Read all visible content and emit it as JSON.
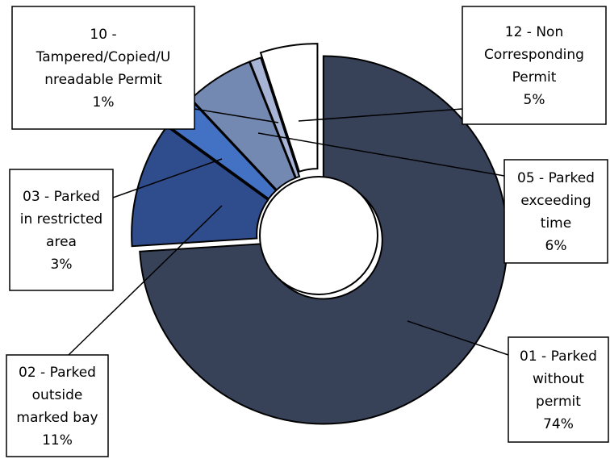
{
  "chart_data": {
    "type": "pie",
    "variant": "exploded donut",
    "categories": [
      "01 - Parked without permit",
      "02 - Parked outside marked bay",
      "03 - Parked in restricted area",
      "05 - Parked exceeding time",
      "10 - Tampered/Copied/Unreadable Permit",
      "12 - Non Corresponding Permit"
    ],
    "values": [
      74,
      11,
      3,
      6,
      1,
      5
    ],
    "colors": {
      "01": "#374259",
      "02": "#2F4D8C",
      "03": "#4371C4",
      "05": "#7389B2",
      "10": "#A8B4D6",
      "12": "#FFFFFF"
    },
    "legend": "none",
    "labels": [
      {
        "id": "01",
        "lines": [
          "01 - Parked",
          "without",
          "permit",
          "74%"
        ]
      },
      {
        "id": "02",
        "lines": [
          "02 - Parked",
          "outside",
          "marked bay",
          "11%"
        ]
      },
      {
        "id": "03",
        "lines": [
          "03 - Parked",
          "in restricted",
          "area",
          "3%"
        ]
      },
      {
        "id": "05",
        "lines": [
          "05 - Parked",
          "exceeding",
          "time",
          "6%"
        ]
      },
      {
        "id": "10",
        "lines": [
          "10 -",
          "Tampered/Copied/U",
          "nreadable Permit",
          "1%"
        ]
      },
      {
        "id": "12",
        "lines": [
          "12 - Non",
          "Corresponding",
          "Permit",
          "5%"
        ]
      }
    ]
  }
}
